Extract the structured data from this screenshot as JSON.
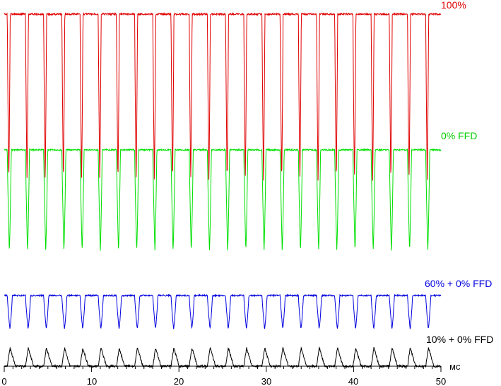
{
  "chart_data": {
    "type": "line",
    "xlabel": "мс",
    "xlim": [
      0,
      50
    ],
    "x_ticks": [
      "0",
      "10",
      "20",
      "30",
      "40",
      "50"
    ],
    "grid": false,
    "legend": "inline-right",
    "period_ms": 2.083,
    "series": [
      {
        "name": "100%",
        "color": "#e00000",
        "high": 1.0,
        "low": 0.0
      },
      {
        "name": "0% FFD",
        "color": "#00e000",
        "high": 1.0,
        "low": 0.0
      },
      {
        "name": "60% + 0% FFD",
        "color": "#0000e0",
        "high": 1.0,
        "low": 0.0
      },
      {
        "name": "10% + 0% FFD",
        "color": "#000000",
        "high": 1.0,
        "low": 0.0
      }
    ]
  }
}
